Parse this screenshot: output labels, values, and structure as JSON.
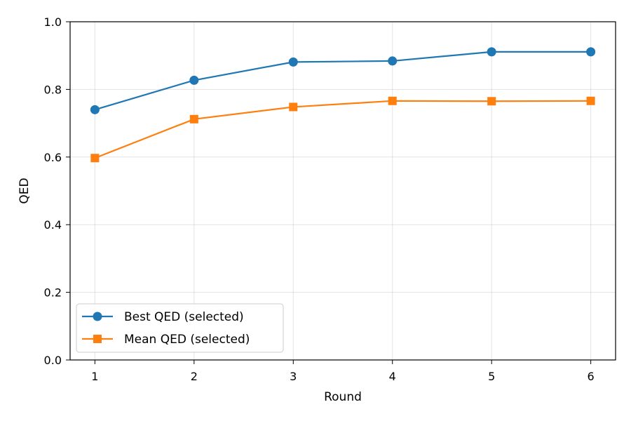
{
  "chart_data": {
    "type": "line",
    "x": [
      1,
      2,
      3,
      4,
      5,
      6
    ],
    "series": [
      {
        "name": "Best QED (selected)",
        "values": [
          0.74,
          0.827,
          0.881,
          0.884,
          0.911,
          0.911
        ],
        "color": "#1f77b4",
        "marker": "circle"
      },
      {
        "name": "Mean QED (selected)",
        "values": [
          0.597,
          0.712,
          0.748,
          0.766,
          0.765,
          0.766
        ],
        "color": "#ff7f0e",
        "marker": "square"
      }
    ],
    "xlabel": "Round",
    "ylabel": "QED",
    "xlim": [
      0.75,
      6.25
    ],
    "ylim": [
      0.0,
      1.0
    ],
    "xticks": [
      "1",
      "2",
      "3",
      "4",
      "5",
      "6"
    ],
    "yticks": [
      "0.0",
      "0.2",
      "0.4",
      "0.6",
      "0.8",
      "1.0"
    ],
    "grid": true,
    "legend": "lower-left"
  }
}
